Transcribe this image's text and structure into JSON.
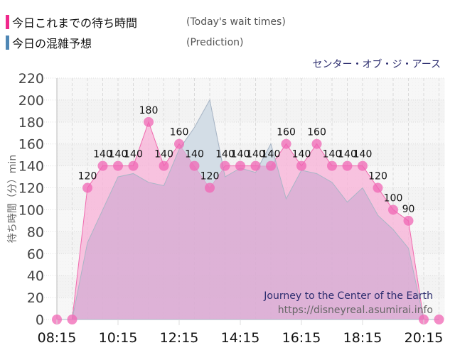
{
  "legend": {
    "items": [
      {
        "label_jp": "今日これまでの待ち時間",
        "label_en": "(Today's wait times)",
        "color": "#f0288c"
      },
      {
        "label_jp": "今日の混雑予想",
        "label_en": "(Prediction)",
        "color": "#4f87b5"
      }
    ]
  },
  "attraction_jp": "センター・オブ・ジ・アース",
  "watermark": {
    "title": "Journey to the Center of the Earth",
    "url": "https://disneyreal.asumirai.info"
  },
  "chart_data": {
    "type": "area",
    "title": "センター・オブ・ジ・アース",
    "xlabel": "",
    "ylabel": "待ち時間（分）min",
    "ylim": [
      0,
      220
    ],
    "yticks": [
      0,
      20,
      40,
      60,
      80,
      100,
      120,
      140,
      160,
      180,
      200,
      220
    ],
    "xticks": [
      "08:15",
      "10:15",
      "12:15",
      "14:15",
      "16:15",
      "18:15",
      "20:15"
    ],
    "grid": true,
    "legend_position": "top-left",
    "x": [
      "08:15",
      "08:45",
      "09:15",
      "09:45",
      "10:15",
      "10:45",
      "11:15",
      "11:45",
      "12:15",
      "12:45",
      "13:15",
      "13:45",
      "14:15",
      "14:45",
      "15:15",
      "15:45",
      "16:15",
      "16:45",
      "17:15",
      "17:45",
      "18:15",
      "18:45",
      "19:15",
      "19:45",
      "20:15",
      "20:45"
    ],
    "series": [
      {
        "name": "今日これまでの待ち時間 (Today's wait times)",
        "color": "#f0288c",
        "values": [
          0,
          0,
          120,
          140,
          140,
          140,
          180,
          140,
          160,
          140,
          120,
          140,
          140,
          140,
          140,
          160,
          140,
          160,
          140,
          140,
          140,
          120,
          100,
          90,
          0,
          0
        ],
        "labels": [
          "",
          "",
          "120",
          "140",
          "140",
          "140",
          "180",
          "140",
          "160",
          "140",
          "120",
          "140",
          "140",
          "140",
          "140",
          "160",
          "140",
          "160",
          "140",
          "140",
          "140",
          "120",
          "100",
          "90",
          "",
          ""
        ]
      },
      {
        "name": "今日の混雑予想 (Prediction)",
        "color": "#4f87b5",
        "values": [
          0,
          0,
          70,
          100,
          130,
          133,
          125,
          122,
          155,
          175,
          200,
          130,
          138,
          134,
          160,
          110,
          136,
          133,
          125,
          107,
          120,
          95,
          82,
          65,
          0,
          0
        ]
      }
    ]
  }
}
